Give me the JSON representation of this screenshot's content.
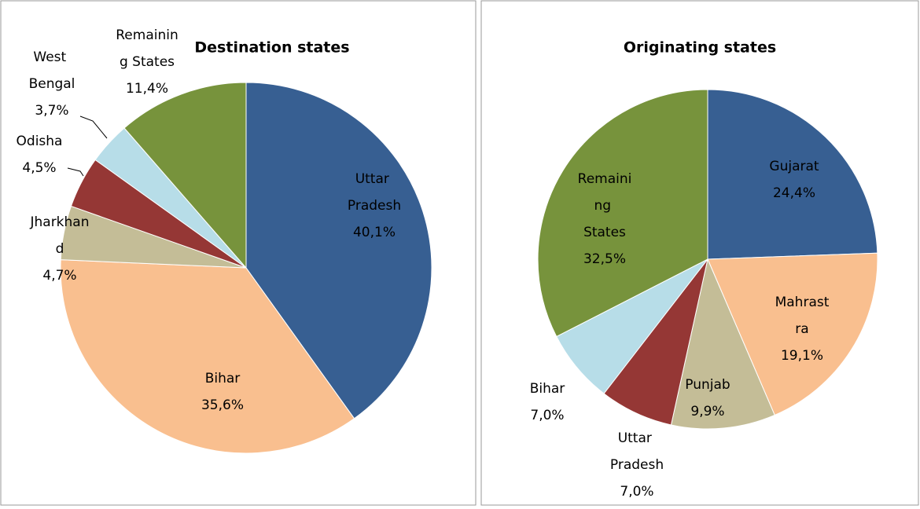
{
  "chart_data": [
    {
      "type": "pie",
      "title": "Destination states",
      "categories": [
        "Uttar Pradesh",
        "Bihar",
        "Jharkhand",
        "Odisha",
        "West Bengal",
        "Remaining States"
      ],
      "values": [
        40.1,
        35.6,
        4.7,
        4.5,
        3.7,
        11.4
      ],
      "value_labels": [
        "40,1%",
        "35,6%",
        "4,7%",
        "4,5%",
        "3,7%",
        "11,4%"
      ],
      "colors": [
        "#375f92",
        "#f9bf8f",
        "#c4bd97",
        "#953735",
        "#b7dde8",
        "#77933c"
      ]
    },
    {
      "type": "pie",
      "title": "Originating states",
      "categories": [
        "Gujarat",
        "Mahrastra",
        "Punjab",
        "Uttar Pradesh",
        "Bihar",
        "Remaining States"
      ],
      "values": [
        24.4,
        19.1,
        9.9,
        7.0,
        7.0,
        32.5
      ],
      "value_labels": [
        "24,4%",
        "19,1%",
        "9,9%",
        "7,0%",
        "7,0%",
        "32,5%"
      ],
      "colors": [
        "#375f92",
        "#f9bf8f",
        "#c4bd97",
        "#953735",
        "#b7dde8",
        "#77933c"
      ]
    }
  ]
}
